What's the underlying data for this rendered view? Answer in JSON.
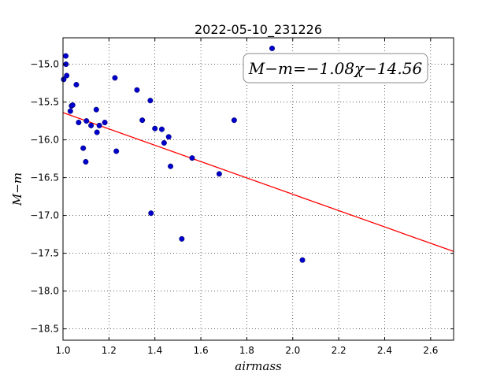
{
  "chart_data": {
    "type": "scatter",
    "title": "2022-05-10_231226",
    "xlabel": "airmass",
    "ylabel": "M−m",
    "xlim": [
      1.0,
      2.7
    ],
    "ylim": [
      -18.65,
      -14.65
    ],
    "x_ticks": [
      1.0,
      1.2,
      1.4,
      1.6,
      1.8,
      2.0,
      2.2,
      2.4,
      2.6
    ],
    "x_tick_labels": [
      "1.0",
      "1.2",
      "1.4",
      "1.6",
      "1.8",
      "2.0",
      "2.2",
      "2.4",
      "2.6"
    ],
    "y_ticks": [
      -15.0,
      -15.5,
      -16.0,
      -16.5,
      -17.0,
      -17.5,
      -18.0,
      -18.5
    ],
    "y_tick_labels": [
      "−15.0",
      "−15.5",
      "−16.0",
      "−16.5",
      "−17.0",
      "−17.5",
      "−18.0",
      "−18.5"
    ],
    "grid": true,
    "grid_style": "dotted",
    "marker_color": "#0000cc",
    "fit_line_color": "#ff0000",
    "fit": {
      "slope": -1.08,
      "intercept": -14.56,
      "label": "M−m=−1.08χ−14.56",
      "label_position": "top-right"
    },
    "points": {
      "x": [
        1.003,
        1.012,
        1.013,
        1.016,
        1.032,
        1.037,
        1.042,
        1.058,
        1.068,
        1.088,
        1.099,
        1.102,
        1.122,
        1.145,
        1.148,
        1.158,
        1.182,
        1.226,
        1.232,
        1.322,
        1.345,
        1.38,
        1.383,
        1.4,
        1.43,
        1.44,
        1.46,
        1.468,
        1.517,
        1.562,
        1.68,
        1.745,
        1.91,
        2.042
      ],
      "y": [
        -15.2,
        -14.89,
        -15.0,
        -15.15,
        -15.62,
        -15.55,
        -15.54,
        -15.27,
        -15.77,
        -16.11,
        -16.29,
        -15.75,
        -15.81,
        -15.6,
        -15.9,
        -15.81,
        -15.77,
        -15.18,
        -16.15,
        -15.34,
        -15.74,
        -15.48,
        -16.97,
        -15.85,
        -15.86,
        -16.04,
        -15.96,
        -16.35,
        -17.31,
        -16.24,
        -16.45,
        -15.74,
        -14.79,
        -17.59
      ]
    }
  }
}
